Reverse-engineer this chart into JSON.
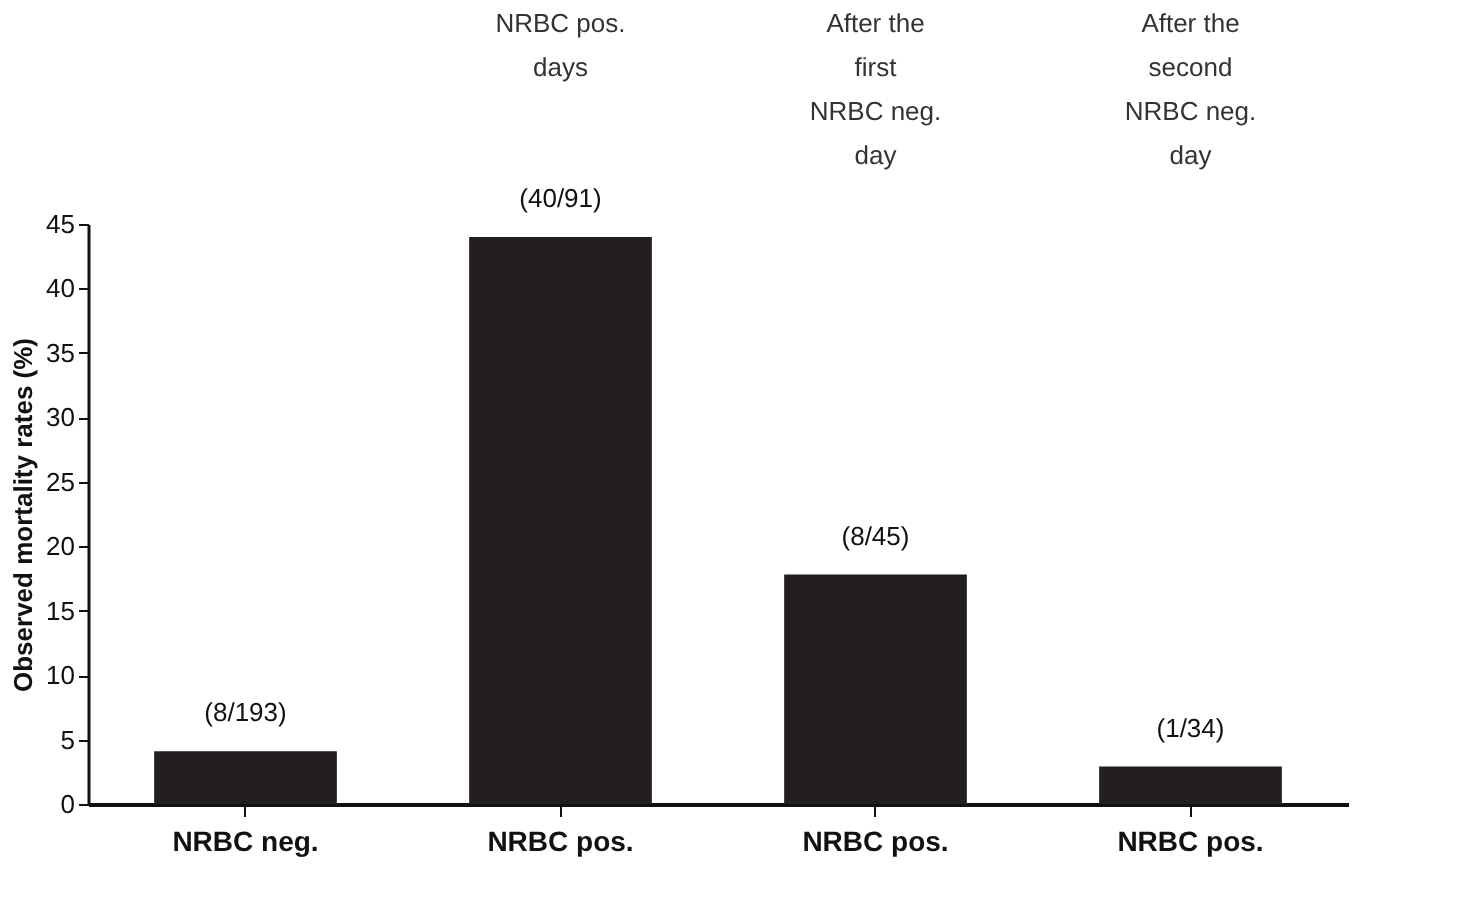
{
  "chart_data": {
    "type": "bar",
    "ylabel": "Observed mortality rates (%)",
    "categories": [
      "NRBC neg.",
      "NRBC pos.",
      "NRBC pos.",
      "NRBC pos."
    ],
    "values": [
      4.1,
      44.0,
      17.8,
      2.9
    ],
    "value_labels": [
      "(8/193)",
      "(40/91)",
      "(8/45)",
      "(1/34)"
    ],
    "color": "#231f20",
    "ylim": [
      0,
      45
    ],
    "yticks": [
      0,
      5,
      10,
      15,
      20,
      25,
      30,
      35,
      40,
      45
    ],
    "grid": false,
    "annotations": [
      "NRBC pos.\ndays",
      "After the\nfirst\nNRBC neg.\nday",
      "After the\nsecond\nNRBC neg.\nday"
    ]
  }
}
